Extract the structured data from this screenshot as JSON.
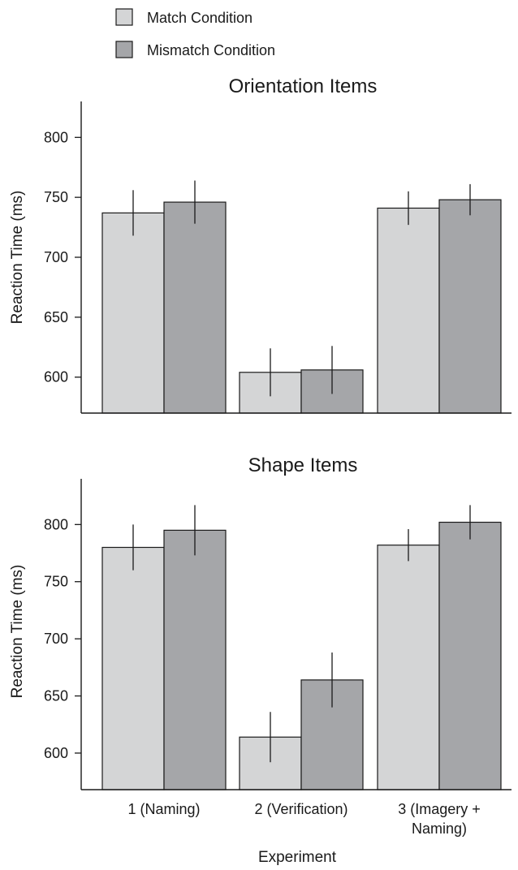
{
  "legend": [
    {
      "label": "Match Condition",
      "color": "#d4d5d6"
    },
    {
      "label": "Mismatch Condition",
      "color": "#a5a6a9"
    }
  ],
  "xlabel": "Experiment",
  "chart_data": [
    {
      "type": "bar",
      "title": "Orientation Items",
      "ylabel": "Reaction Time (ms)",
      "xlabel": "",
      "categories": [
        "1 (Naming)",
        "2 (Verification)",
        "3 (Imagery + Naming)"
      ],
      "ylim": [
        570,
        830
      ],
      "yticks": [
        600,
        650,
        700,
        750,
        800
      ],
      "series": [
        {
          "name": "Match Condition",
          "values": [
            737,
            604,
            741
          ],
          "error": [
            19,
            20,
            14
          ]
        },
        {
          "name": "Mismatch Condition",
          "values": [
            746,
            606,
            748
          ],
          "error": [
            18,
            20,
            13
          ]
        }
      ]
    },
    {
      "type": "bar",
      "title": "Shape Items",
      "ylabel": "Reaction Time (ms)",
      "xlabel": "Experiment",
      "categories": [
        "1 (Naming)",
        "2 (Verification)",
        "3 (Imagery + Naming)"
      ],
      "ylim": [
        568,
        840
      ],
      "yticks": [
        600,
        650,
        700,
        750,
        800
      ],
      "series": [
        {
          "name": "Match Condition",
          "values": [
            780,
            614,
            782
          ],
          "error": [
            20,
            22,
            14
          ]
        },
        {
          "name": "Mismatch Condition",
          "values": [
            795,
            664,
            802
          ],
          "error": [
            22,
            24,
            15
          ]
        }
      ]
    }
  ]
}
